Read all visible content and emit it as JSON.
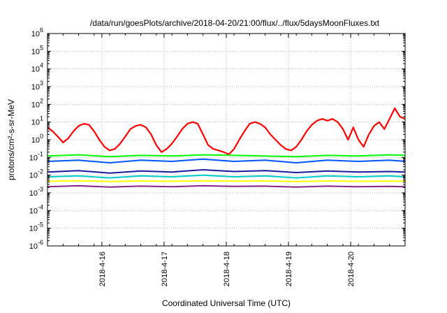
{
  "chart_data": {
    "type": "line",
    "title": "/data/run/goesPlots/archive/2018-04-20/21:00/flux/../flux/5daysMoonFluxes.txt",
    "xlabel": "Coordinated Universal Time (UTC)",
    "ylabel": "protons/cm²-s-sr-MeV",
    "y_scale": "log",
    "ylim_exponents": [
      -6,
      6
    ],
    "y_tick_labels": [
      {
        "base": "10",
        "exp": "-6"
      },
      {
        "base": "10",
        "exp": "-5"
      },
      {
        "base": "10",
        "exp": "-4"
      },
      {
        "base": "10",
        "exp": "-3"
      },
      {
        "base": "10",
        "exp": "-2"
      },
      {
        "base": "10",
        "exp": "-1"
      },
      {
        "base": "10",
        "exp": "0"
      },
      {
        "base": "10",
        "exp": "1"
      },
      {
        "base": "10",
        "exp": "2"
      },
      {
        "base": "10",
        "exp": "3"
      },
      {
        "base": "10",
        "exp": "4"
      },
      {
        "base": "10",
        "exp": "5"
      },
      {
        "base": "10",
        "exp": "6"
      }
    ],
    "x_range": [
      "2018-04-15T03:00",
      "2018-04-20T21:00"
    ],
    "x_ticks": [
      {
        "label": "2018-4-16",
        "date": "2018-04-16T00:00"
      },
      {
        "label": "2018-4-17",
        "date": "2018-04-17T00:00"
      },
      {
        "label": "2018-4-18",
        "date": "2018-04-18T00:00"
      },
      {
        "label": "2018-4-19",
        "date": "2018-04-19T00:00"
      },
      {
        "label": "2018-4-20",
        "date": "2018-04-20T00:00"
      }
    ],
    "grid": true,
    "legend": "none",
    "series": [
      {
        "color": "#ff0000",
        "x": [
          "2018-04-15T03:00",
          "2018-04-15T05:00",
          "2018-04-15T07:00",
          "2018-04-15T09:00",
          "2018-04-15T11:00",
          "2018-04-15T13:00",
          "2018-04-15T15:00",
          "2018-04-15T17:00",
          "2018-04-15T19:00",
          "2018-04-15T21:00",
          "2018-04-15T23:00",
          "2018-04-16T01:00",
          "2018-04-16T03:00",
          "2018-04-16T05:00",
          "2018-04-16T07:00",
          "2018-04-16T09:00",
          "2018-04-16T11:00",
          "2018-04-16T13:00",
          "2018-04-16T15:00",
          "2018-04-16T17:00",
          "2018-04-16T19:00",
          "2018-04-16T21:00",
          "2018-04-16T23:00",
          "2018-04-17T01:00",
          "2018-04-17T03:00",
          "2018-04-17T05:00",
          "2018-04-17T07:00",
          "2018-04-17T09:00",
          "2018-04-17T11:00",
          "2018-04-17T13:00",
          "2018-04-17T15:00",
          "2018-04-17T17:00",
          "2018-04-17T19:00",
          "2018-04-17T21:00",
          "2018-04-17T23:00",
          "2018-04-18T01:00",
          "2018-04-18T03:00",
          "2018-04-18T05:00",
          "2018-04-18T07:00",
          "2018-04-18T09:00",
          "2018-04-18T11:00",
          "2018-04-18T13:00",
          "2018-04-18T15:00",
          "2018-04-18T17:00",
          "2018-04-18T19:00",
          "2018-04-18T21:00",
          "2018-04-18T23:00",
          "2018-04-19T01:00",
          "2018-04-19T03:00",
          "2018-04-19T05:00",
          "2018-04-19T07:00",
          "2018-04-19T09:00",
          "2018-04-19T11:00",
          "2018-04-19T13:00",
          "2018-04-19T15:00",
          "2018-04-19T17:00",
          "2018-04-19T19:00",
          "2018-04-19T21:00",
          "2018-04-19T23:00",
          "2018-04-20T01:00",
          "2018-04-20T03:00",
          "2018-04-20T05:00",
          "2018-04-20T07:00",
          "2018-04-20T09:00",
          "2018-04-20T11:00",
          "2018-04-20T13:00",
          "2018-04-20T15:00",
          "2018-04-20T17:00",
          "2018-04-20T19:00",
          "2018-04-20T21:00"
        ],
        "y": [
          5,
          3,
          1.5,
          0.7,
          1.2,
          3,
          6,
          8,
          7,
          3,
          1,
          0.4,
          0.25,
          0.3,
          0.6,
          1.5,
          4,
          6,
          7,
          5,
          2,
          0.5,
          0.2,
          0.3,
          0.6,
          1.5,
          4,
          8,
          10,
          8,
          2,
          0.5,
          0.3,
          0.25,
          0.2,
          0.15,
          0.3,
          1,
          3,
          8,
          10,
          8,
          5,
          2,
          1,
          0.5,
          0.3,
          0.25,
          0.4,
          1,
          3,
          7,
          12,
          15,
          12,
          15,
          10,
          4,
          1,
          5,
          1,
          0.4,
          2,
          6,
          10,
          4,
          15,
          60,
          20,
          15
        ]
      },
      {
        "color": "#00ff00",
        "x": [
          "2018-04-15T03:00",
          "2018-04-15T15:00",
          "2018-04-16T03:00",
          "2018-04-16T15:00",
          "2018-04-17T03:00",
          "2018-04-17T15:00",
          "2018-04-18T03:00",
          "2018-04-18T15:00",
          "2018-04-19T03:00",
          "2018-04-19T15:00",
          "2018-04-20T03:00",
          "2018-04-20T15:00",
          "2018-04-20T21:00"
        ],
        "y": [
          0.12,
          0.14,
          0.11,
          0.13,
          0.12,
          0.14,
          0.13,
          0.12,
          0.11,
          0.13,
          0.12,
          0.14,
          0.13
        ]
      },
      {
        "color": "#0055ff",
        "x": [
          "2018-04-15T03:00",
          "2018-04-15T15:00",
          "2018-04-16T03:00",
          "2018-04-16T15:00",
          "2018-04-17T03:00",
          "2018-04-17T15:00",
          "2018-04-18T03:00",
          "2018-04-18T15:00",
          "2018-04-19T03:00",
          "2018-04-19T15:00",
          "2018-04-20T03:00",
          "2018-04-20T15:00",
          "2018-04-20T21:00"
        ],
        "y": [
          0.06,
          0.07,
          0.05,
          0.07,
          0.06,
          0.08,
          0.06,
          0.07,
          0.05,
          0.07,
          0.06,
          0.07,
          0.06
        ]
      },
      {
        "color": "#1a1aa0",
        "x": [
          "2018-04-15T03:00",
          "2018-04-15T15:00",
          "2018-04-16T03:00",
          "2018-04-16T15:00",
          "2018-04-17T03:00",
          "2018-04-17T15:00",
          "2018-04-18T03:00",
          "2018-04-18T15:00",
          "2018-04-19T03:00",
          "2018-04-19T15:00",
          "2018-04-20T03:00",
          "2018-04-20T15:00",
          "2018-04-20T21:00"
        ],
        "y": [
          0.015,
          0.018,
          0.013,
          0.017,
          0.015,
          0.02,
          0.016,
          0.018,
          0.014,
          0.017,
          0.015,
          0.016,
          0.015
        ]
      },
      {
        "color": "#00cccc",
        "x": [
          "2018-04-15T03:00",
          "2018-04-15T15:00",
          "2018-04-16T03:00",
          "2018-04-16T15:00",
          "2018-04-17T03:00",
          "2018-04-17T15:00",
          "2018-04-18T03:00",
          "2018-04-18T15:00",
          "2018-04-19T03:00",
          "2018-04-19T15:00",
          "2018-04-20T03:00",
          "2018-04-20T15:00",
          "2018-04-20T21:00"
        ],
        "y": [
          0.008,
          0.009,
          0.007,
          0.009,
          0.008,
          0.01,
          0.008,
          0.009,
          0.007,
          0.009,
          0.008,
          0.009,
          0.008
        ]
      },
      {
        "color": "#ffff00",
        "x": [
          "2018-04-15T03:00",
          "2018-04-15T15:00",
          "2018-04-16T03:00",
          "2018-04-16T15:00",
          "2018-04-17T03:00",
          "2018-04-17T15:00",
          "2018-04-18T03:00",
          "2018-04-18T15:00",
          "2018-04-19T03:00",
          "2018-04-19T15:00",
          "2018-04-20T03:00",
          "2018-04-20T15:00",
          "2018-04-20T21:00"
        ],
        "y": [
          0.0045,
          0.0048,
          0.0044,
          0.0047,
          0.0045,
          0.0048,
          0.0046,
          0.0047,
          0.0044,
          0.0047,
          0.0045,
          0.0046,
          0.0045
        ]
      },
      {
        "color": "#882288",
        "x": [
          "2018-04-15T03:00",
          "2018-04-15T15:00",
          "2018-04-16T03:00",
          "2018-04-16T15:00",
          "2018-04-17T03:00",
          "2018-04-17T15:00",
          "2018-04-18T03:00",
          "2018-04-18T15:00",
          "2018-04-19T03:00",
          "2018-04-19T15:00",
          "2018-04-20T03:00",
          "2018-04-20T15:00",
          "2018-04-20T21:00"
        ],
        "y": [
          0.0022,
          0.0025,
          0.0021,
          0.0024,
          0.0022,
          0.0025,
          0.0023,
          0.0024,
          0.0021,
          0.0024,
          0.0022,
          0.0023,
          0.0022
        ]
      }
    ]
  }
}
